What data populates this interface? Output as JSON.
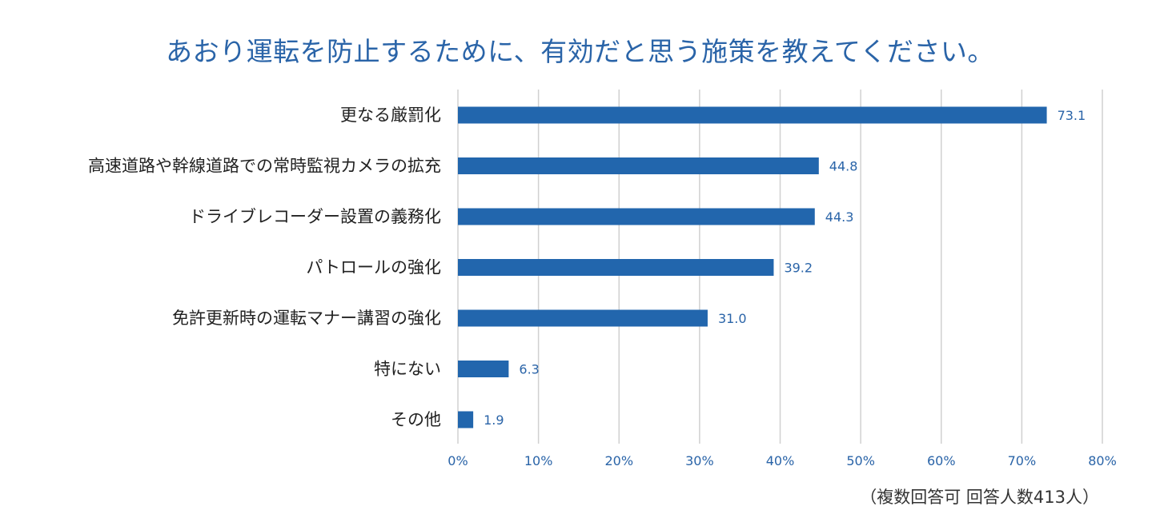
{
  "chart_data": {
    "type": "bar",
    "orientation": "horizontal",
    "title": "あおり運転を防止するために、有効だと思う施策を教えてください。",
    "categories": [
      "更なる厳罰化",
      "高速道路や幹線道路での常時監視カメラの拡充",
      "ドライブレコーダー設置の義務化",
      "パトロールの強化",
      "免許更新時の運転マナー講習の強化",
      "特にない",
      "その他"
    ],
    "values": [
      73.1,
      44.8,
      44.3,
      39.2,
      31.0,
      6.3,
      1.9
    ],
    "value_labels": [
      "73.1",
      "44.8",
      "44.3",
      "39.2",
      "31.0",
      "6.3",
      "1.9"
    ],
    "xlim": [
      0,
      80
    ],
    "xticks": [
      0,
      10,
      20,
      30,
      40,
      50,
      60,
      70,
      80
    ],
    "xtick_labels": [
      "0%",
      "10%",
      "20%",
      "30%",
      "40%",
      "50%",
      "60%",
      "70%",
      "80%"
    ],
    "grid": "vertical",
    "legend": "none",
    "xlabel": "",
    "ylabel": "",
    "footnote": "（複数回答可  回答人数413人）",
    "colors": {
      "bar": "#2266ad",
      "title": "#2a64a8",
      "grid": "#d0d0d0",
      "labels": "#2a64a8"
    }
  }
}
